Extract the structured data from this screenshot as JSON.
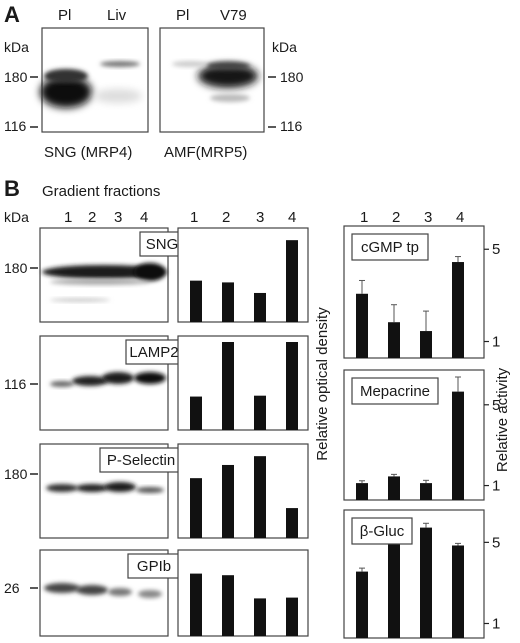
{
  "panelA": {
    "letter": "A",
    "blot1": {
      "lane1": "Pl",
      "lane2": "Liv",
      "kda": "kDa",
      "m180": "180",
      "m116": "116",
      "caption": "SNG (MRP4)"
    },
    "blot2": {
      "lane1": "Pl",
      "lane2": "V79",
      "kda": "kDa",
      "m180": "180",
      "m116": "116",
      "caption": "AMF(MRP5)"
    }
  },
  "panelB": {
    "letter": "B",
    "title": "Gradient fractions",
    "kda": "kDa",
    "lanes": [
      "1",
      "2",
      "3",
      "4"
    ],
    "blots": [
      {
        "label": "SNG",
        "marker": "180"
      },
      {
        "label": "LAMP2",
        "marker": "116"
      },
      {
        "label": "P-Selectin",
        "marker": "180"
      },
      {
        "label": "GPIb",
        "marker": "26"
      }
    ],
    "density_axis_label": "Relative optical density",
    "activity_axis_label": "Relative activity",
    "assays": [
      {
        "label": "cGMP tp",
        "ticks": [
          "5",
          "1"
        ]
      },
      {
        "label": "Mepacrine",
        "ticks": [
          "5",
          "1"
        ]
      },
      {
        "label": "β-Gluc",
        "ticks": [
          "5",
          "1"
        ]
      }
    ]
  },
  "chart_data": [
    {
      "type": "bar",
      "categories": [
        "1",
        "2",
        "3",
        "4"
      ],
      "series": [
        {
          "name": "SNG",
          "values": [
            0.47,
            0.45,
            0.33,
            0.93
          ]
        },
        {
          "name": "LAMP2",
          "values": [
            0.38,
            1.0,
            0.39,
            1.0
          ]
        },
        {
          "name": "P-Selectin",
          "values": [
            0.68,
            0.83,
            0.93,
            0.34
          ]
        },
        {
          "name": "GPIb",
          "values": [
            0.78,
            0.76,
            0.47,
            0.48
          ]
        }
      ],
      "ylabel": "Relative optical density",
      "axis_shown": false
    },
    {
      "type": "bar",
      "categories": [
        "1",
        "2",
        "3",
        "4"
      ],
      "yscale": "log",
      "ylabel": "Relative activity",
      "series": [
        {
          "name": "cGMP tp",
          "values": [
            2.3,
            1.4,
            1.2,
            4.0
          ],
          "errors": [
            0.6,
            0.5,
            0.5,
            0.4
          ],
          "yticks": [
            1,
            5
          ],
          "ylim": [
            0.75,
            7.5
          ]
        },
        {
          "name": "Mepacrine",
          "values": [
            1.05,
            1.2,
            1.05,
            6.5
          ],
          "errors": [
            0.05,
            0.05,
            0.06,
            2.2
          ],
          "yticks": [
            1,
            5
          ],
          "ylim": [
            0.75,
            10
          ]
        },
        {
          "name": "β-Gluc",
          "values": [
            2.8,
            7.2,
            6.7,
            4.7
          ],
          "errors": [
            0.2,
            0.4,
            0.6,
            0.2
          ],
          "yticks": [
            1,
            5
          ],
          "ylim": [
            0.75,
            9.5
          ]
        }
      ]
    }
  ]
}
